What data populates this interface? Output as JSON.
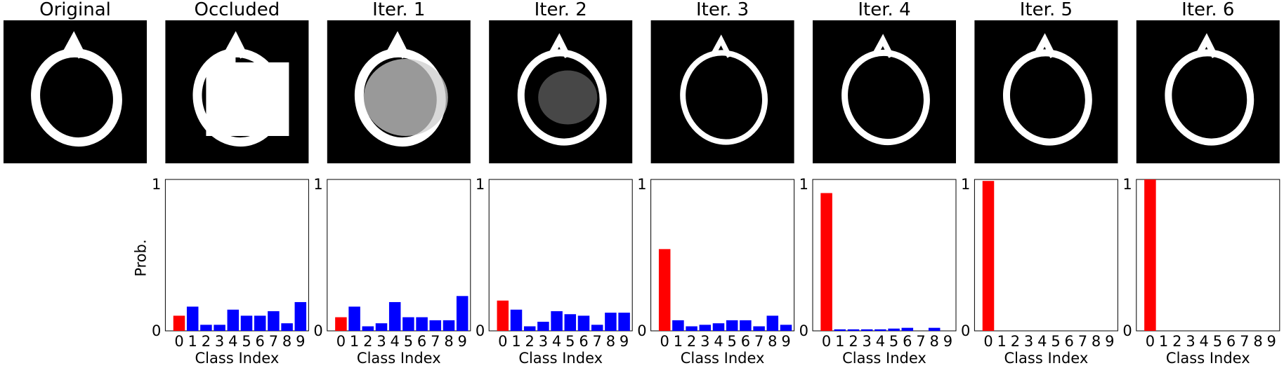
{
  "panels": [
    {
      "title": "Original",
      "has_chart": false
    },
    {
      "title": "Occluded",
      "has_chart": true
    },
    {
      "title": "Iter. 1",
      "has_chart": true
    },
    {
      "title": "Iter. 2",
      "has_chart": true
    },
    {
      "title": "Iter. 3",
      "has_chart": true
    },
    {
      "title": "Iter. 4",
      "has_chart": true
    },
    {
      "title": "Iter. 5",
      "has_chart": true
    },
    {
      "title": "Iter. 6",
      "has_chart": true
    }
  ],
  "colors": {
    "highlight": "#ff0000",
    "bar": "#0000ff",
    "image_bg": "#000000",
    "digit": "#ffffff"
  },
  "chart_data": {
    "type": "bar",
    "categories": [
      "0",
      "1",
      "2",
      "3",
      "4",
      "5",
      "6",
      "7",
      "8",
      "9"
    ],
    "xlabel": "Class Index",
    "ylabel": "Prob.",
    "ylim": [
      0,
      1
    ],
    "yticks": [
      "0",
      "1"
    ],
    "highlight_category": "0",
    "series": [
      {
        "panel": "Occluded",
        "values": [
          0.1,
          0.16,
          0.04,
          0.04,
          0.14,
          0.1,
          0.1,
          0.13,
          0.05,
          0.19
        ]
      },
      {
        "panel": "Iter. 1",
        "values": [
          0.09,
          0.16,
          0.03,
          0.05,
          0.19,
          0.09,
          0.09,
          0.07,
          0.07,
          0.23
        ]
      },
      {
        "panel": "Iter. 2",
        "values": [
          0.2,
          0.14,
          0.03,
          0.06,
          0.13,
          0.11,
          0.1,
          0.04,
          0.12,
          0.12
        ]
      },
      {
        "panel": "Iter. 3",
        "values": [
          0.54,
          0.07,
          0.03,
          0.04,
          0.05,
          0.07,
          0.07,
          0.03,
          0.1,
          0.04
        ]
      },
      {
        "panel": "Iter. 4",
        "values": [
          0.91,
          0.01,
          0.01,
          0.01,
          0.01,
          0.015,
          0.02,
          0.0,
          0.02,
          0.0
        ]
      },
      {
        "panel": "Iter. 5",
        "values": [
          0.99,
          0.0,
          0.0,
          0.0,
          0.0,
          0.0,
          0.0,
          0.0,
          0.0,
          0.0
        ]
      },
      {
        "panel": "Iter. 6",
        "values": [
          1.0,
          0.0,
          0.0,
          0.0,
          0.0,
          0.0,
          0.0,
          0.0,
          0.0,
          0.0
        ]
      }
    ]
  }
}
